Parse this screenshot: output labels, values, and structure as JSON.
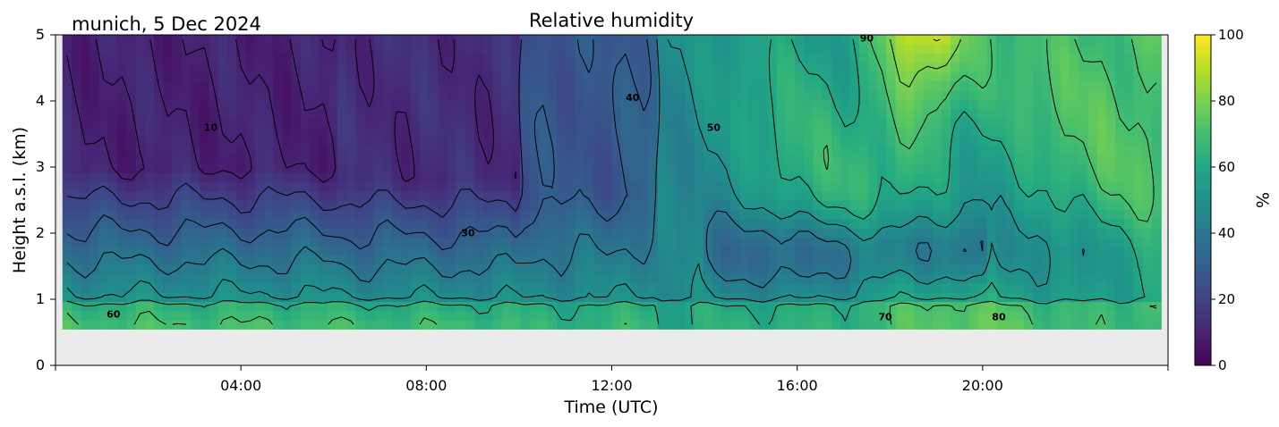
{
  "page": {
    "location_date": "munich, 5 Dec 2024"
  },
  "chart_data": {
    "type": "heatmap",
    "title": "Relative humidity",
    "xlabel": "Time (UTC)",
    "ylabel": "Height a.s.l. (km)",
    "x_unit": "hours UTC",
    "xlim": [
      0,
      24
    ],
    "ylim": [
      0,
      5
    ],
    "x_ticks": [
      {
        "value": 4,
        "label": "04:00"
      },
      {
        "value": 8,
        "label": "08:00"
      },
      {
        "value": 12,
        "label": "12:00"
      },
      {
        "value": 16,
        "label": "16:00"
      },
      {
        "value": 20,
        "label": "20:00"
      }
    ],
    "y_ticks": [
      {
        "value": 0,
        "label": "0"
      },
      {
        "value": 1,
        "label": "1"
      },
      {
        "value": 2,
        "label": "2"
      },
      {
        "value": 3,
        "label": "3"
      },
      {
        "value": 4,
        "label": "4"
      },
      {
        "value": 5,
        "label": "5"
      }
    ],
    "colorbar": {
      "label": "%",
      "range": [
        0,
        100
      ],
      "colormap": "viridis",
      "ticks": [
        {
          "value": 0,
          "label": "0"
        },
        {
          "value": 20,
          "label": "20"
        },
        {
          "value": 40,
          "label": "40"
        },
        {
          "value": 60,
          "label": "60"
        },
        {
          "value": 80,
          "label": "80"
        },
        {
          "value": 100,
          "label": "100"
        }
      ]
    },
    "data_extent": {
      "x": [
        0.15,
        23.85
      ],
      "y": [
        0.55,
        5
      ]
    },
    "missing_data_color": "#ebebeb",
    "contour_levels": [
      10,
      20,
      30,
      40,
      50,
      60,
      70,
      80,
      90
    ],
    "contour_labels": [
      {
        "text": "60",
        "x": 1.25,
        "y": 0.72
      },
      {
        "text": "10",
        "x": 3.35,
        "y": 3.55
      },
      {
        "text": "30",
        "x": 8.9,
        "y": 1.95
      },
      {
        "text": "40",
        "x": 12.45,
        "y": 4.0
      },
      {
        "text": "50",
        "x": 14.2,
        "y": 3.55
      },
      {
        "text": "90",
        "x": 17.5,
        "y": 4.9
      },
      {
        "text": "70",
        "x": 17.9,
        "y": 0.68
      },
      {
        "text": "80",
        "x": 20.35,
        "y": 0.68
      }
    ],
    "grid": false
  }
}
